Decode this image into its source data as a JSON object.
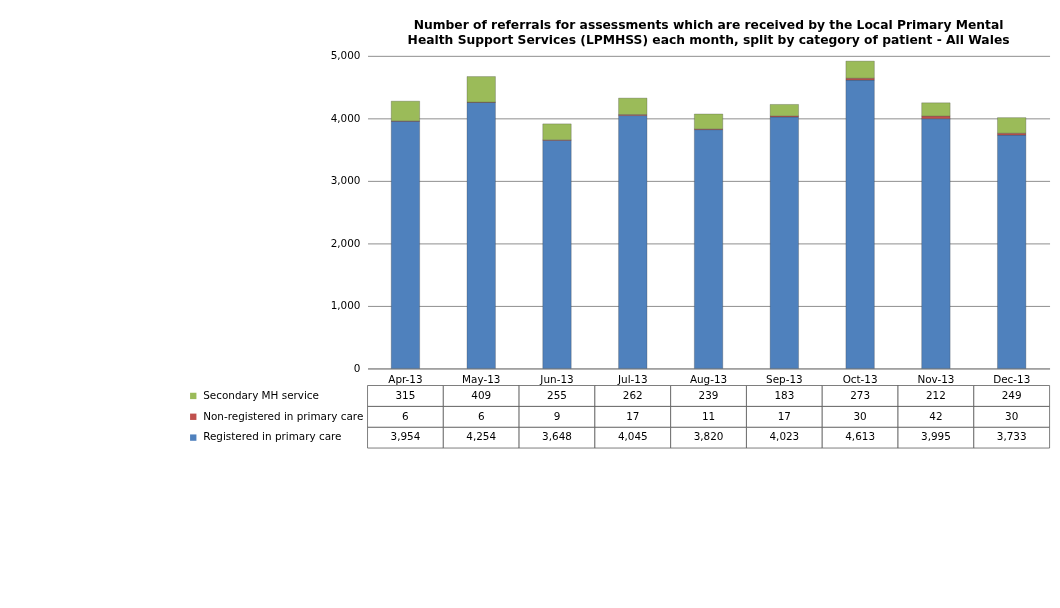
{
  "chart_data": {
    "type": "bar",
    "stacked": true,
    "title": [
      "Number of referrals for assessments which are received by the Local Primary Mental",
      "Health Support Services (LPMHSS) each month, split by category of patient - All Wales"
    ],
    "categories": [
      "Apr-13",
      "May-13",
      "Jun-13",
      "Jul-13",
      "Aug-13",
      "Sep-13",
      "Oct-13",
      "Nov-13",
      "Dec-13"
    ],
    "series": [
      {
        "name": "Registered in primary care",
        "color": "#4f81bd",
        "values": [
          3954,
          4254,
          3648,
          4045,
          3820,
          4023,
          4613,
          3995,
          3733
        ],
        "value_labels": [
          "3,954",
          "4,254",
          "3,648",
          "4,045",
          "3,820",
          "4,023",
          "4,613",
          "3,995",
          "3,733"
        ]
      },
      {
        "name": "Non-registered in primary care",
        "color": "#c0504d",
        "values": [
          6,
          6,
          9,
          17,
          11,
          17,
          30,
          42,
          30
        ],
        "value_labels": [
          "6",
          "6",
          "9",
          "17",
          "11",
          "17",
          "30",
          "42",
          "30"
        ]
      },
      {
        "name": "Secondary MH service",
        "color": "#9bbb59",
        "values": [
          315,
          409,
          255,
          262,
          239,
          183,
          273,
          212,
          249
        ],
        "value_labels": [
          "315",
          "409",
          "255",
          "262",
          "239",
          "183",
          "273",
          "212",
          "249"
        ]
      }
    ],
    "ylim": [
      0,
      5000
    ],
    "yticks": [
      0,
      {
        "value": 1000,
        "label": "1,000"
      },
      {
        "value": 2000,
        "label": "2,000"
      },
      {
        "value": 3000,
        "label": "3,000"
      },
      {
        "value": 4000,
        "label": "4,000"
      },
      {
        "value": 5000,
        "label": "5,000"
      }
    ],
    "grid": "y",
    "legend": "bottom"
  }
}
